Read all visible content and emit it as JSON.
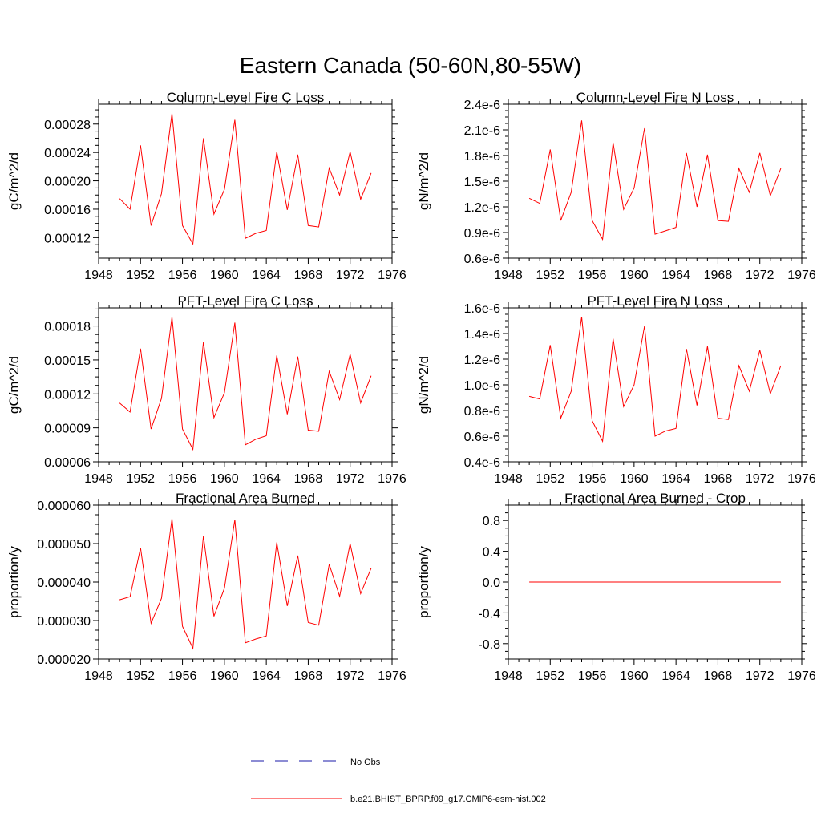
{
  "figure": {
    "title": "Eastern Canada (50-60N,80-55W)"
  },
  "legend": {
    "obs_label": "No Obs",
    "model_label": "b.e21.BHIST_BPRP.f09_g17.CMIP6-esm-hist.002",
    "obs_color": "#1a1aa8",
    "model_color": "#ff0000"
  },
  "chart_data": [
    {
      "type": "line",
      "title": "Column-Level Fire C Loss",
      "xlabel": "",
      "ylabel": "gC/m^2/d",
      "xlim": [
        1948,
        1976
      ],
      "ylim": [
        9.1e-05,
        0.000308
      ],
      "x_ticks": [
        "1948",
        "1952",
        "1956",
        "1960",
        "1964",
        "1968",
        "1972",
        "1976"
      ],
      "y_ticks": [
        "0.00012",
        "0.00016",
        "0.00020",
        "0.00024",
        "0.00028"
      ],
      "y_tick_values": [
        0.00012,
        0.00016,
        0.0002,
        0.00024,
        0.00028
      ],
      "grid": false,
      "series": [
        {
          "name": "b.e21.BHIST_BPRP.f09_g17.CMIP6-esm-hist.002",
          "color": "#ff0000",
          "x": [
            1950,
            1951,
            1952,
            1953,
            1954,
            1955,
            1956,
            1957,
            1958,
            1959,
            1960,
            1961,
            1962,
            1963,
            1964,
            1965,
            1966,
            1967,
            1968,
            1969,
            1970,
            1971,
            1972,
            1973,
            1974
          ],
          "values": [
            0.000175,
            0.00016,
            0.00025,
            0.000137,
            0.000182,
            0.000295,
            0.000137,
            0.000111,
            0.00026,
            0.000153,
            0.000188,
            0.000286,
            0.000119,
            0.000126,
            0.00013,
            0.000241,
            0.000159,
            0.000237,
            0.000137,
            0.000135,
            0.000218,
            0.00018,
            0.000241,
            0.000174,
            0.000211
          ]
        }
      ]
    },
    {
      "type": "line",
      "title": "Column-Level Fire N Loss",
      "xlabel": "",
      "ylabel": "gN/m^2/d",
      "xlim": [
        1948,
        1976
      ],
      "ylim": [
        6e-07,
        2.4e-06
      ],
      "x_ticks": [
        "1948",
        "1952",
        "1956",
        "1960",
        "1964",
        "1968",
        "1972",
        "1976"
      ],
      "y_ticks": [
        "0.6e-6",
        "0.9e-6",
        "1.2e-6",
        "1.5e-6",
        "1.8e-6",
        "2.1e-6",
        "2.4e-6"
      ],
      "y_tick_values": [
        6e-07,
        9e-07,
        1.2e-06,
        1.5e-06,
        1.8e-06,
        2.1e-06,
        2.4e-06
      ],
      "grid": false,
      "series": [
        {
          "name": "b.e21.BHIST_BPRP.f09_g17.CMIP6-esm-hist.002",
          "color": "#ff0000",
          "x": [
            1950,
            1951,
            1952,
            1953,
            1954,
            1955,
            1956,
            1957,
            1958,
            1959,
            1960,
            1961,
            1962,
            1963,
            1964,
            1965,
            1966,
            1967,
            1968,
            1969,
            1970,
            1971,
            1972,
            1973,
            1974
          ],
          "values": [
            1.3e-06,
            1.24e-06,
            1.87e-06,
            1.04e-06,
            1.37e-06,
            2.21e-06,
            1.04e-06,
            8.2e-07,
            1.95e-06,
            1.17e-06,
            1.42e-06,
            2.12e-06,
            8.8e-07,
            9.2e-07,
            9.6e-07,
            1.83e-06,
            1.2e-06,
            1.81e-06,
            1.04e-06,
            1.03e-06,
            1.65e-06,
            1.37e-06,
            1.83e-06,
            1.33e-06,
            1.65e-06
          ]
        }
      ]
    },
    {
      "type": "line",
      "title": "PFT-Level Fire C Loss",
      "xlabel": "",
      "ylabel": "gC/m^2/d",
      "xlim": [
        1948,
        1976
      ],
      "ylim": [
        6e-05,
        0.000196
      ],
      "x_ticks": [
        "1948",
        "1952",
        "1956",
        "1960",
        "1964",
        "1968",
        "1972",
        "1976"
      ],
      "y_ticks": [
        "0.00006",
        "0.00009",
        "0.00012",
        "0.00015",
        "0.00018"
      ],
      "y_tick_values": [
        6e-05,
        9e-05,
        0.00012,
        0.00015,
        0.00018
      ],
      "grid": false,
      "series": [
        {
          "name": "b.e21.BHIST_BPRP.f09_g17.CMIP6-esm-hist.002",
          "color": "#ff0000",
          "x": [
            1950,
            1951,
            1952,
            1953,
            1954,
            1955,
            1956,
            1957,
            1958,
            1959,
            1960,
            1961,
            1962,
            1963,
            1964,
            1965,
            1966,
            1967,
            1968,
            1969,
            1970,
            1971,
            1972,
            1973,
            1974
          ],
          "values": [
            0.000112,
            0.000104,
            0.00016,
            8.9e-05,
            0.000116,
            0.000188,
            8.9e-05,
            7.1e-05,
            0.000166,
            9.9e-05,
            0.000121,
            0.000183,
            7.5e-05,
            8e-05,
            8.3e-05,
            0.000154,
            0.000102,
            0.000153,
            8.8e-05,
            8.7e-05,
            0.00014,
            0.000115,
            0.000155,
            0.000112,
            0.000136
          ]
        }
      ]
    },
    {
      "type": "line",
      "title": "PFT-Level Fire N Loss",
      "xlabel": "",
      "ylabel": "gN/m^2/d",
      "xlim": [
        1948,
        1976
      ],
      "ylim": [
        4e-07,
        1.6e-06
      ],
      "x_ticks": [
        "1948",
        "1952",
        "1956",
        "1960",
        "1964",
        "1968",
        "1972",
        "1976"
      ],
      "y_ticks": [
        "0.4e-6",
        "0.6e-6",
        "0.8e-6",
        "1.0e-6",
        "1.2e-6",
        "1.4e-6",
        "1.6e-6"
      ],
      "y_tick_values": [
        4e-07,
        6e-07,
        8e-07,
        1e-06,
        1.2e-06,
        1.4e-06,
        1.6e-06
      ],
      "grid": false,
      "series": [
        {
          "name": "b.e21.BHIST_BPRP.f09_g17.CMIP6-esm-hist.002",
          "color": "#ff0000",
          "x": [
            1950,
            1951,
            1952,
            1953,
            1954,
            1955,
            1956,
            1957,
            1958,
            1959,
            1960,
            1961,
            1962,
            1963,
            1964,
            1965,
            1966,
            1967,
            1968,
            1969,
            1970,
            1971,
            1972,
            1973,
            1974
          ],
          "values": [
            9.1e-07,
            8.9e-07,
            1.31e-06,
            7.4e-07,
            9.5e-07,
            1.53e-06,
            7.2e-07,
            5.6e-07,
            1.36e-06,
            8.3e-07,
            1e-06,
            1.46e-06,
            6e-07,
            6.4e-07,
            6.6e-07,
            1.28e-06,
            8.4e-07,
            1.3e-06,
            7.4e-07,
            7.3e-07,
            1.15e-06,
            9.5e-07,
            1.27e-06,
            9.3e-07,
            1.15e-06
          ]
        }
      ]
    },
    {
      "type": "line",
      "title": "Fractional Area Burned",
      "xlabel": "",
      "ylabel": "proportion/y",
      "xlim": [
        1948,
        1976
      ],
      "ylim": [
        2e-05,
        6e-05
      ],
      "x_ticks": [
        "1948",
        "1952",
        "1956",
        "1960",
        "1964",
        "1968",
        "1972",
        "1976"
      ],
      "y_ticks": [
        "0.000020",
        "0.000030",
        "0.000040",
        "0.000050",
        "0.000060"
      ],
      "y_tick_values": [
        2e-05,
        3e-05,
        4e-05,
        5e-05,
        6e-05
      ],
      "grid": false,
      "series": [
        {
          "name": "b.e21.BHIST_BPRP.f09_g17.CMIP6-esm-hist.002",
          "color": "#ff0000",
          "x": [
            1950,
            1951,
            1952,
            1953,
            1954,
            1955,
            1956,
            1957,
            1958,
            1959,
            1960,
            1961,
            1962,
            1963,
            1964,
            1965,
            1966,
            1967,
            1968,
            1969,
            1970,
            1971,
            1972,
            1973,
            1974
          ],
          "values": [
            3.54e-05,
            3.62e-05,
            4.89e-05,
            2.93e-05,
            3.58e-05,
            5.65e-05,
            2.85e-05,
            2.28e-05,
            5.2e-05,
            3.11e-05,
            3.84e-05,
            5.62e-05,
            2.42e-05,
            2.52e-05,
            2.6e-05,
            5.03e-05,
            3.38e-05,
            4.69e-05,
            2.95e-05,
            2.88e-05,
            4.46e-05,
            3.63e-05,
            5e-05,
            3.7e-05,
            4.36e-05
          ]
        }
      ]
    },
    {
      "type": "line",
      "title": "Fractional Area Burned - Crop",
      "xlabel": "",
      "ylabel": "proportion/y",
      "xlim": [
        1948,
        1976
      ],
      "ylim": [
        -1.0,
        1.0
      ],
      "x_ticks": [
        "1948",
        "1952",
        "1956",
        "1960",
        "1964",
        "1968",
        "1972",
        "1976"
      ],
      "y_ticks": [
        "-0.8",
        "-0.4",
        "0.0",
        "0.4",
        "0.8"
      ],
      "y_tick_values": [
        -0.8,
        -0.4,
        0.0,
        0.4,
        0.8
      ],
      "grid": false,
      "series": [
        {
          "name": "b.e21.BHIST_BPRP.f09_g17.CMIP6-esm-hist.002",
          "color": "#ff0000",
          "x": [
            1950,
            1951,
            1952,
            1953,
            1954,
            1955,
            1956,
            1957,
            1958,
            1959,
            1960,
            1961,
            1962,
            1963,
            1964,
            1965,
            1966,
            1967,
            1968,
            1969,
            1970,
            1971,
            1972,
            1973,
            1974
          ],
          "values": [
            0,
            0,
            0,
            0,
            0,
            0,
            0,
            0,
            0,
            0,
            0,
            0,
            0,
            0,
            0,
            0,
            0,
            0,
            0,
            0,
            0,
            0,
            0,
            0,
            0
          ]
        }
      ]
    }
  ]
}
